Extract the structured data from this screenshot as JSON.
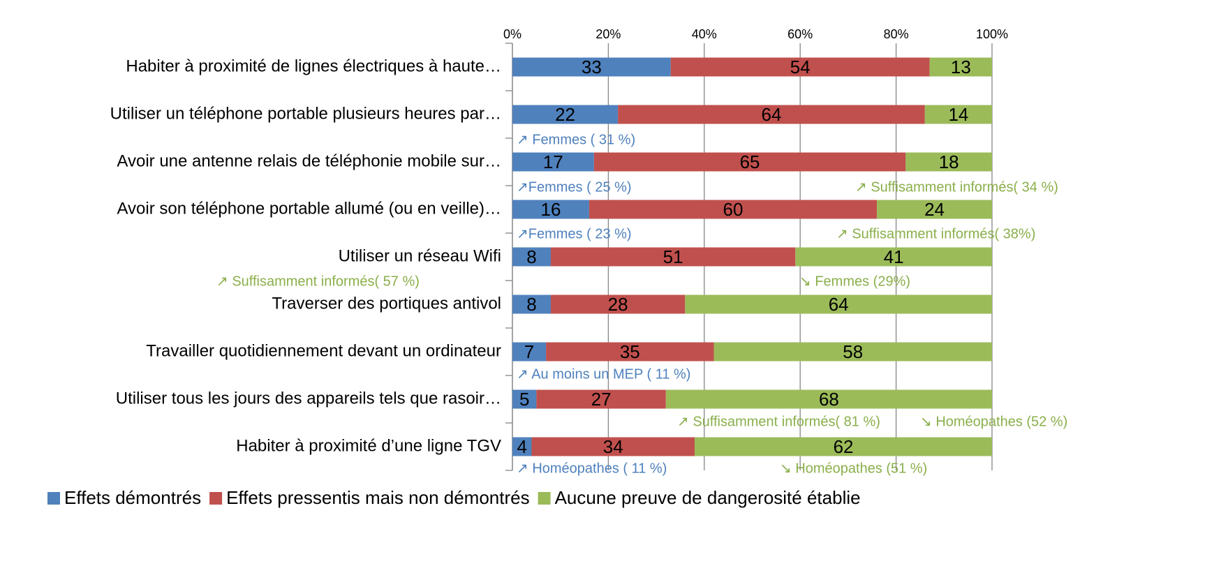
{
  "chart_data": {
    "type": "stacked-bar-horizontal",
    "categories": [
      "Habiter à proximité de lignes électriques à haute…",
      "Utiliser un téléphone portable plusieurs heures par…",
      "Avoir une antenne relais de téléphonie mobile sur…",
      "Avoir son téléphone portable allumé (ou en veille)…",
      "Utiliser un réseau Wifi",
      "Traverser des portiques antivol",
      "Travailler quotidiennement devant un ordinateur",
      "Utiliser tous les jours des appareils tels que rasoir…",
      "Habiter à proximité d’une ligne TGV"
    ],
    "series": [
      {
        "name": "Effets démontrés",
        "color": "#4f81bd",
        "values": [
          33,
          22,
          17,
          16,
          8,
          8,
          7,
          5,
          4
        ]
      },
      {
        "name": "Effets pressentis mais non démontrés",
        "color": "#c0504d",
        "values": [
          54,
          64,
          65,
          60,
          51,
          28,
          35,
          27,
          34
        ]
      },
      {
        "name": "Aucune preuve de dangerosité établie",
        "color": "#9bbb59",
        "values": [
          13,
          14,
          18,
          24,
          41,
          64,
          58,
          68,
          62
        ]
      }
    ],
    "xlim": [
      0,
      100
    ],
    "xticks": [
      {
        "value": 0,
        "label": "0%"
      },
      {
        "value": 20,
        "label": "20%"
      },
      {
        "value": 40,
        "label": "40%"
      },
      {
        "value": 60,
        "label": "60%"
      },
      {
        "value": 80,
        "label": "80%"
      },
      {
        "value": 100,
        "label": "100%"
      }
    ],
    "grid": true,
    "legend": "bottom",
    "annotations": [
      {
        "text": "↗ Femmes ( 31 %)",
        "color": "#4f81bd"
      },
      {
        "text": "↗Femmes ( 25 %)",
        "color": "#4f81bd"
      },
      {
        "text": "↗ Suffisamment informés( 34 %)",
        "color": "#8aaf4a"
      },
      {
        "text": "↗Femmes ( 23 %)",
        "color": "#4f81bd"
      },
      {
        "text": "↗ Suffisamment informés( 38%)",
        "color": "#8aaf4a"
      },
      {
        "text": "↗ Suffisamment informés( 57 %)",
        "color": "#8aaf4a"
      },
      {
        "text": "↘ Femmes (29%)",
        "color": "#8aaf4a"
      },
      {
        "text": "↗ Au moins un MEP ( 11 %)",
        "color": "#4f81bd"
      },
      {
        "text": "↗ Suffisamment informés( 81 %)",
        "color": "#8aaf4a"
      },
      {
        "text": "↘ Homéopathes (52 %)",
        "color": "#8aaf4a"
      },
      {
        "text": "↗ Homéopathes ( 11 %)",
        "color": "#4f81bd"
      },
      {
        "text": "↘ Homéopathes (51 %)",
        "color": "#8aaf4a"
      }
    ]
  }
}
